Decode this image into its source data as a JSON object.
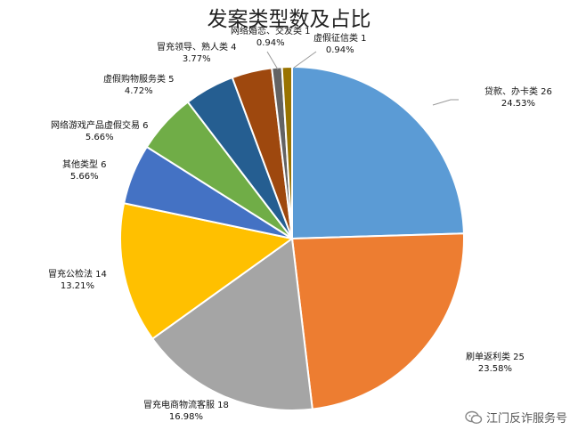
{
  "chart_data": {
    "type": "pie",
    "title": "发案类型数及占比",
    "slices": [
      {
        "name": "贷款、办卡类",
        "value": 26,
        "percent": "24.53%",
        "color": "#5b9bd5"
      },
      {
        "name": "刷单返利类",
        "value": 25,
        "percent": "23.58%",
        "color": "#ed7d31"
      },
      {
        "name": "冒充电商物流客服",
        "value": 18,
        "percent": "16.98%",
        "color": "#a5a5a5"
      },
      {
        "name": "冒充公检法",
        "value": 14,
        "percent": "13.21%",
        "color": "#ffc000"
      },
      {
        "name": "其他类型",
        "value": 6,
        "percent": "5.66%",
        "color": "#4472c4"
      },
      {
        "name": "网络游戏产品虚假交易",
        "value": 6,
        "percent": "5.66%",
        "color": "#70ad47"
      },
      {
        "name": "虚假购物服务类",
        "value": 5,
        "percent": "4.72%",
        "color": "#255e91"
      },
      {
        "name": "冒充领导、熟人类",
        "value": 4,
        "percent": "3.77%",
        "color": "#9e480e"
      },
      {
        "name": "网络婚恋、交友类",
        "value": 1,
        "percent": "0.94%",
        "color": "#636363"
      },
      {
        "name": "虚假征信类",
        "value": 1,
        "percent": "0.94%",
        "color": "#997300"
      }
    ]
  },
  "watermark": {
    "text": "江门反诈服务号",
    "icon": "wechat-icon"
  }
}
